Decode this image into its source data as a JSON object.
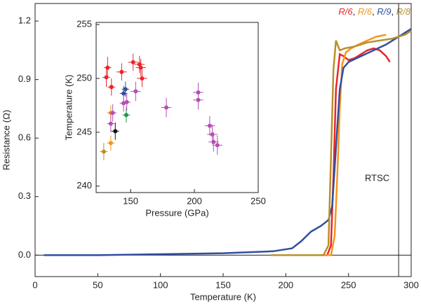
{
  "chart_data": [
    {
      "type": "line",
      "xlabel": "Temperature (K)",
      "ylabel": "Resistance (Ω)",
      "xlim": [
        0,
        300
      ],
      "ylim": [
        -0.11,
        1.29
      ],
      "xticks": [
        0,
        50,
        100,
        150,
        200,
        250,
        300
      ],
      "yticks": [
        {
          "value": 0,
          "label": "0.0"
        },
        0.3,
        0.6,
        0.9,
        1.2
      ],
      "reference_lines": {
        "x": [
          290
        ],
        "y": [
          0
        ]
      },
      "annotation": "RTSC",
      "legend_separator": ", ",
      "series": [
        {
          "name": "R/6",
          "color": "#e8262b",
          "x": [
            228,
            233,
            236,
            238,
            240,
            243,
            246,
            250,
            255,
            260,
            265,
            270,
            275,
            280,
            283
          ],
          "values": [
            0.0,
            0.0,
            0.05,
            0.4,
            0.85,
            1.03,
            1.02,
            1.0,
            1.01,
            1.03,
            1.05,
            1.06,
            1.05,
            1.02,
            0.99
          ]
        },
        {
          "name": "R/6",
          "color": "#f7941d",
          "x": [
            230,
            236,
            239,
            241,
            243,
            245,
            248,
            252,
            258,
            265,
            272,
            280
          ],
          "values": [
            0.0,
            0.0,
            0.1,
            0.4,
            0.75,
            0.98,
            1.04,
            1.06,
            1.08,
            1.1,
            1.12,
            1.13
          ]
        },
        {
          "name": "R/9",
          "color": "#2f4f9f",
          "x": [
            7,
            50,
            100,
            150,
            190,
            205,
            212,
            220,
            228,
            234,
            237,
            240,
            243,
            246,
            250,
            260,
            270,
            280,
            290,
            300
          ],
          "values": [
            0.0,
            0.0,
            0.005,
            0.01,
            0.02,
            0.035,
            0.07,
            0.12,
            0.15,
            0.18,
            0.25,
            0.55,
            0.85,
            0.96,
            0.99,
            1.02,
            1.05,
            1.08,
            1.12,
            1.16
          ]
        },
        {
          "name": "R/8",
          "color": "#b8902a",
          "x": [
            188,
            200,
            215,
            230,
            234,
            236,
            238,
            240,
            243,
            247,
            255,
            265,
            275,
            285,
            295,
            300
          ],
          "values": [
            0.0,
            0.0,
            0.0,
            0.0,
            0.05,
            0.5,
            0.95,
            1.1,
            1.05,
            1.06,
            1.07,
            1.09,
            1.1,
            1.11,
            1.13,
            1.15
          ]
        }
      ]
    },
    {
      "type": "scatter",
      "xlabel": "Pressure (GPa)",
      "ylabel": "Temperature (K)",
      "xlim": [
        123,
        250
      ],
      "ylim": [
        239.4,
        255.2
      ],
      "xticks": [
        150,
        200,
        250
      ],
      "yticks": [
        240,
        245,
        250,
        255
      ],
      "series": [
        {
          "color": "#e8262b",
          "x": [
            132,
            131,
            135,
            143,
            152,
            157,
            159,
            158
          ],
          "values": [
            251,
            250.1,
            249.2,
            250.6,
            251.5,
            251.3,
            250,
            251
          ],
          "xerr": [
            3,
            3,
            3,
            4,
            4,
            4,
            4,
            4
          ],
          "yerr": [
            1,
            0.9,
            0.8,
            0.8,
            0.8,
            0.8,
            0.8,
            0.8
          ]
        },
        {
          "color": "#f7941d",
          "x": [
            134.5,
            134.5
          ],
          "values": [
            244,
            246.8
          ],
          "xerr": [
            3,
            3
          ],
          "yerr": [
            0.7,
            0.7
          ]
        },
        {
          "color": "#2f4f9f",
          "x": [
            146,
            144.5
          ],
          "values": [
            249,
            248.6
          ],
          "xerr": [
            3,
            3
          ],
          "yerr": [
            0.7,
            0.7
          ]
        },
        {
          "color": "#1a9a4a",
          "x": [
            146.6
          ],
          "values": [
            246.6
          ],
          "xerr": [
            3
          ],
          "yerr": [
            0.7
          ]
        },
        {
          "color": "#111111",
          "x": [
            138
          ],
          "values": [
            245.1
          ],
          "xerr": [
            3
          ],
          "yerr": [
            0.8
          ]
        },
        {
          "color": "#b8902a",
          "x": [
            129
          ],
          "values": [
            243.2
          ],
          "xerr": [
            3
          ],
          "yerr": [
            0.8
          ]
        },
        {
          "color": "#b44fb4",
          "x": [
            134.5,
            136,
            144.5,
            147,
            154,
            178,
            203,
            203,
            212,
            214,
            215,
            218
          ],
          "values": [
            245.8,
            246.8,
            247.7,
            247.8,
            248.8,
            247.3,
            248.7,
            248,
            245.6,
            244.8,
            244.1,
            243.8
          ],
          "xerr": [
            3,
            3,
            3,
            3,
            4,
            4,
            4,
            4,
            4,
            4,
            4,
            4
          ],
          "yerr": [
            0.8,
            0.8,
            0.8,
            0.8,
            0.9,
            0.9,
            0.9,
            0.9,
            0.9,
            0.9,
            0.9,
            0.9
          ]
        }
      ]
    }
  ]
}
